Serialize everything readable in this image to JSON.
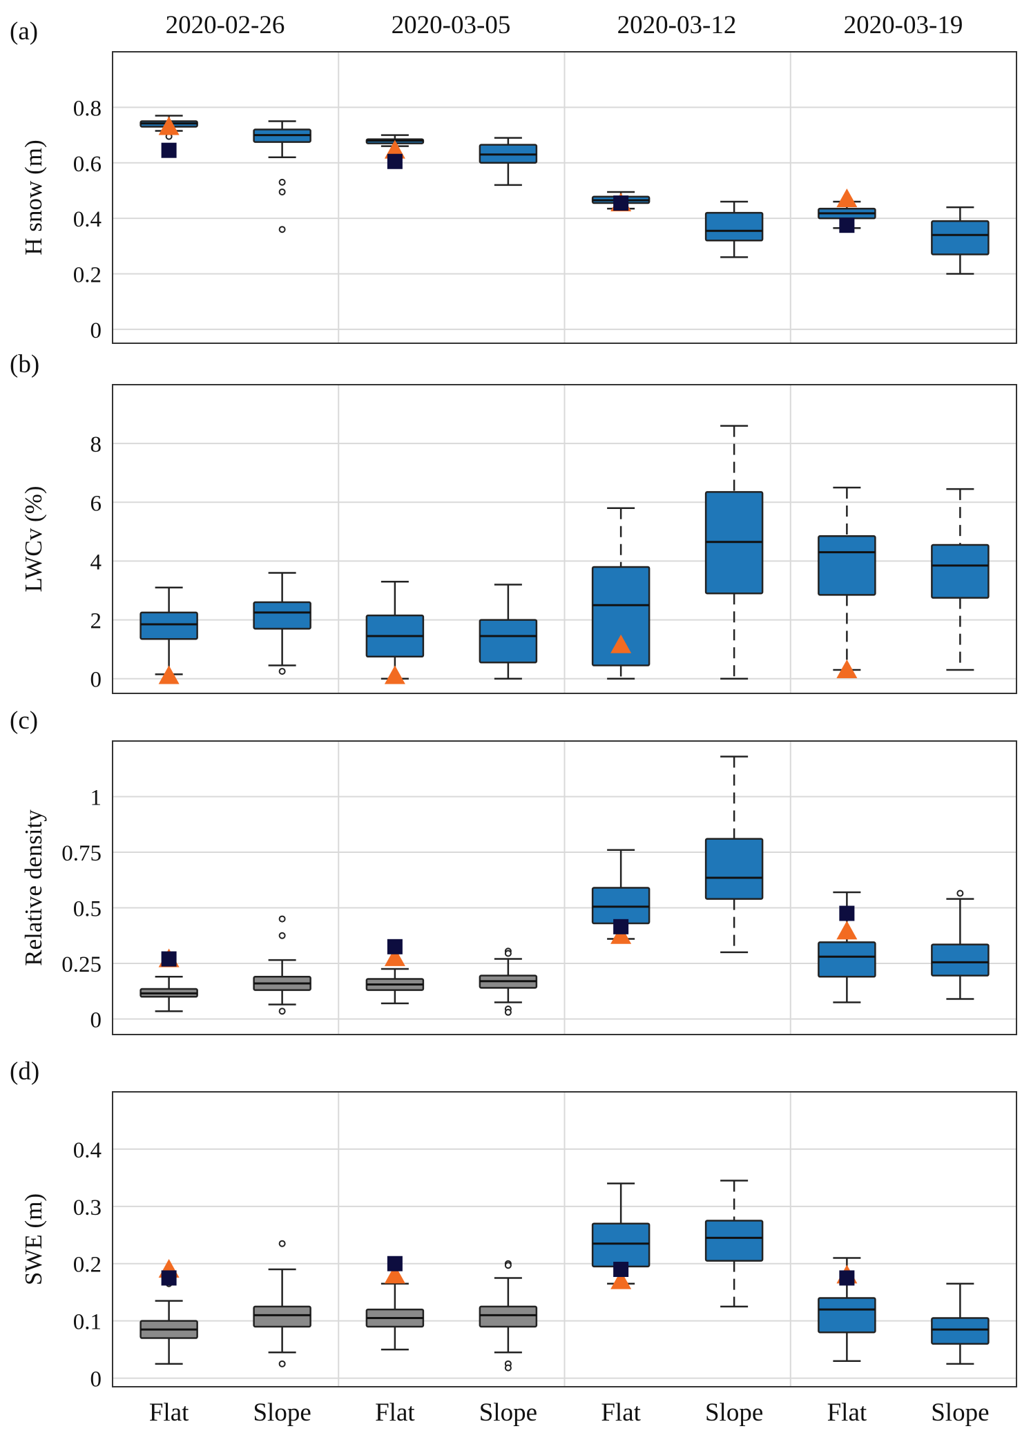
{
  "chart_data": {
    "type": "boxplot",
    "groups": [
      "2020-02-26",
      "2020-03-05",
      "2020-03-12",
      "2020-03-19"
    ],
    "categories": [
      "Flat",
      "Slope"
    ],
    "colors": {
      "box_blue": "#1f77b8",
      "box_gray": "#8a8a8a",
      "triangle": "#f26b21",
      "square": "#0d0d3f",
      "grid": "#d9d9d9"
    },
    "panels": [
      {
        "letter": "(a)",
        "ylabel": "H snow (m)",
        "ylim": [
          -0.05,
          1.0
        ],
        "yticks": [
          0,
          0.2,
          0.4,
          0.6,
          0.8
        ],
        "yticklabels": [
          "0",
          "0.2",
          "0.4",
          "0.6",
          "0.8"
        ],
        "boxes": [
          {
            "date": "2020-02-26",
            "cat": "Flat",
            "color": "blue",
            "min": 0.715,
            "q1": 0.73,
            "median": 0.742,
            "q3": 0.75,
            "max": 0.77,
            "outliers": [
              0.695
            ],
            "dashed": false
          },
          {
            "date": "2020-02-26",
            "cat": "Slope",
            "color": "blue",
            "min": 0.62,
            "q1": 0.675,
            "median": 0.7,
            "q3": 0.72,
            "max": 0.75,
            "outliers": [
              0.53,
              0.495,
              0.36
            ],
            "dashed": false
          },
          {
            "date": "2020-03-05",
            "cat": "Flat",
            "color": "blue",
            "min": 0.66,
            "q1": 0.67,
            "median": 0.68,
            "q3": 0.685,
            "max": 0.7,
            "outliers": [],
            "dashed": false
          },
          {
            "date": "2020-03-05",
            "cat": "Slope",
            "color": "blue",
            "min": 0.52,
            "q1": 0.6,
            "median": 0.63,
            "q3": 0.665,
            "max": 0.69,
            "outliers": [],
            "dashed": false
          },
          {
            "date": "2020-03-12",
            "cat": "Flat",
            "color": "blue",
            "min": 0.435,
            "q1": 0.455,
            "median": 0.465,
            "q3": 0.478,
            "max": 0.495,
            "outliers": [],
            "dashed": false
          },
          {
            "date": "2020-03-12",
            "cat": "Slope",
            "color": "blue",
            "min": 0.26,
            "q1": 0.32,
            "median": 0.355,
            "q3": 0.42,
            "max": 0.46,
            "outliers": [],
            "dashed": false
          },
          {
            "date": "2020-03-19",
            "cat": "Flat",
            "color": "blue",
            "min": 0.365,
            "q1": 0.4,
            "median": 0.418,
            "q3": 0.435,
            "max": 0.46,
            "outliers": [],
            "dashed": false
          },
          {
            "date": "2020-03-19",
            "cat": "Slope",
            "color": "blue",
            "min": 0.2,
            "q1": 0.27,
            "median": 0.34,
            "q3": 0.39,
            "max": 0.44,
            "outliers": [],
            "dashed": false
          }
        ],
        "triangles": [
          {
            "date": "2020-02-26",
            "value": 0.73
          },
          {
            "date": "2020-03-05",
            "value": 0.645
          },
          {
            "date": "2020-03-12",
            "value": 0.455
          },
          {
            "date": "2020-03-19",
            "value": 0.47
          }
        ],
        "squares": [
          {
            "date": "2020-02-26",
            "value": 0.645
          },
          {
            "date": "2020-03-05",
            "value": 0.605
          },
          {
            "date": "2020-03-12",
            "value": 0.455
          },
          {
            "date": "2020-03-19",
            "value": 0.375
          }
        ]
      },
      {
        "letter": "(b)",
        "ylabel": "LWCv (%)",
        "ylim": [
          -0.5,
          10.0
        ],
        "yticks": [
          0,
          2,
          4,
          6,
          8
        ],
        "yticklabels": [
          "0",
          "2",
          "4",
          "6",
          "8"
        ],
        "boxes": [
          {
            "date": "2020-02-26",
            "cat": "Flat",
            "color": "blue",
            "min": 0.15,
            "q1": 1.35,
            "median": 1.85,
            "q3": 2.25,
            "max": 3.1,
            "outliers": [],
            "dashed": false
          },
          {
            "date": "2020-02-26",
            "cat": "Slope",
            "color": "blue",
            "min": 0.45,
            "q1": 1.7,
            "median": 2.25,
            "q3": 2.6,
            "max": 3.6,
            "outliers": [
              0.25
            ],
            "dashed": false
          },
          {
            "date": "2020-03-05",
            "cat": "Flat",
            "color": "blue",
            "min": 0.0,
            "q1": 0.75,
            "median": 1.45,
            "q3": 2.15,
            "max": 3.3,
            "outliers": [],
            "dashed": false
          },
          {
            "date": "2020-03-05",
            "cat": "Slope",
            "color": "blue",
            "min": 0.0,
            "q1": 0.55,
            "median": 1.45,
            "q3": 2.0,
            "max": 3.2,
            "outliers": [],
            "dashed": false
          },
          {
            "date": "2020-03-12",
            "cat": "Flat",
            "color": "blue",
            "min": 0.0,
            "q1": 0.45,
            "median": 2.5,
            "q3": 3.8,
            "max": 5.8,
            "outliers": [],
            "dashed": true
          },
          {
            "date": "2020-03-12",
            "cat": "Slope",
            "color": "blue",
            "min": 0.0,
            "q1": 2.9,
            "median": 4.65,
            "q3": 6.35,
            "max": 8.6,
            "outliers": [],
            "dashed": true
          },
          {
            "date": "2020-03-19",
            "cat": "Flat",
            "color": "blue",
            "min": 0.3,
            "q1": 2.85,
            "median": 4.3,
            "q3": 4.85,
            "max": 6.5,
            "outliers": [],
            "dashed": true
          },
          {
            "date": "2020-03-19",
            "cat": "Slope",
            "color": "blue",
            "min": 0.3,
            "q1": 2.75,
            "median": 3.85,
            "q3": 4.55,
            "max": 6.45,
            "outliers": [],
            "dashed": true
          }
        ],
        "triangles": [
          {
            "date": "2020-02-26",
            "value": 0.1
          },
          {
            "date": "2020-03-05",
            "value": 0.1
          },
          {
            "date": "2020-03-12",
            "value": 1.15
          },
          {
            "date": "2020-03-19",
            "value": 0.3
          }
        ],
        "squares": []
      },
      {
        "letter": "(c)",
        "ylabel": "Relative density",
        "ylim": [
          -0.07,
          1.25
        ],
        "yticks": [
          0,
          0.25,
          0.5,
          0.75,
          1
        ],
        "yticklabels": [
          "0",
          "0.25",
          "0.5",
          "0.75",
          "1"
        ],
        "boxes": [
          {
            "date": "2020-02-26",
            "cat": "Flat",
            "color": "gray",
            "min": 0.035,
            "q1": 0.1,
            "median": 0.115,
            "q3": 0.135,
            "max": 0.19,
            "outliers": [],
            "dashed": false
          },
          {
            "date": "2020-02-26",
            "cat": "Slope",
            "color": "gray",
            "min": 0.065,
            "q1": 0.13,
            "median": 0.16,
            "q3": 0.19,
            "max": 0.265,
            "outliers": [
              0.45,
              0.375,
              0.035
            ],
            "dashed": false
          },
          {
            "date": "2020-03-05",
            "cat": "Flat",
            "color": "gray",
            "min": 0.07,
            "q1": 0.13,
            "median": 0.155,
            "q3": 0.18,
            "max": 0.225,
            "outliers": [],
            "dashed": false
          },
          {
            "date": "2020-03-05",
            "cat": "Slope",
            "color": "gray",
            "min": 0.075,
            "q1": 0.14,
            "median": 0.17,
            "q3": 0.195,
            "max": 0.27,
            "outliers": [
              0.305,
              0.295,
              0.045,
              0.03
            ],
            "dashed": false
          },
          {
            "date": "2020-03-12",
            "cat": "Flat",
            "color": "blue",
            "min": 0.36,
            "q1": 0.43,
            "median": 0.505,
            "q3": 0.59,
            "max": 0.76,
            "outliers": [],
            "dashed": false
          },
          {
            "date": "2020-03-12",
            "cat": "Slope",
            "color": "blue",
            "min": 0.3,
            "q1": 0.54,
            "median": 0.635,
            "q3": 0.81,
            "max": 1.18,
            "outliers": [],
            "dashed": true
          },
          {
            "date": "2020-03-19",
            "cat": "Flat",
            "color": "blue",
            "min": 0.075,
            "q1": 0.19,
            "median": 0.28,
            "q3": 0.345,
            "max": 0.57,
            "outliers": [],
            "dashed": false
          },
          {
            "date": "2020-03-19",
            "cat": "Slope",
            "color": "blue",
            "min": 0.09,
            "q1": 0.195,
            "median": 0.255,
            "q3": 0.335,
            "max": 0.54,
            "outliers": [
              0.565
            ],
            "dashed": false
          }
        ],
        "triangles": [
          {
            "date": "2020-02-26",
            "value": 0.27
          },
          {
            "date": "2020-03-05",
            "value": 0.275
          },
          {
            "date": "2020-03-12",
            "value": 0.375
          },
          {
            "date": "2020-03-19",
            "value": 0.395
          }
        ],
        "squares": [
          {
            "date": "2020-02-26",
            "value": 0.27
          },
          {
            "date": "2020-03-05",
            "value": 0.325
          },
          {
            "date": "2020-03-12",
            "value": 0.415
          },
          {
            "date": "2020-03-19",
            "value": 0.475
          }
        ]
      },
      {
        "letter": "(d)",
        "ylabel": "SWE (m)",
        "ylim": [
          -0.015,
          0.5
        ],
        "yticks": [
          0,
          0.1,
          0.2,
          0.3,
          0.4
        ],
        "yticklabels": [
          "0",
          "0.1",
          "0.2",
          "0.3",
          "0.4"
        ],
        "boxes": [
          {
            "date": "2020-02-26",
            "cat": "Flat",
            "color": "gray",
            "min": 0.025,
            "q1": 0.07,
            "median": 0.085,
            "q3": 0.1,
            "max": 0.135,
            "outliers": [
              0.165
            ],
            "dashed": false
          },
          {
            "date": "2020-02-26",
            "cat": "Slope",
            "color": "gray",
            "min": 0.045,
            "q1": 0.09,
            "median": 0.11,
            "q3": 0.125,
            "max": 0.19,
            "outliers": [
              0.235,
              0.025
            ],
            "dashed": false
          },
          {
            "date": "2020-03-05",
            "cat": "Flat",
            "color": "gray",
            "min": 0.05,
            "q1": 0.09,
            "median": 0.105,
            "q3": 0.12,
            "max": 0.165,
            "outliers": [],
            "dashed": false
          },
          {
            "date": "2020-03-05",
            "cat": "Slope",
            "color": "gray",
            "min": 0.045,
            "q1": 0.09,
            "median": 0.11,
            "q3": 0.125,
            "max": 0.175,
            "outliers": [
              0.2,
              0.197,
              0.025,
              0.018
            ],
            "dashed": false
          },
          {
            "date": "2020-03-12",
            "cat": "Flat",
            "color": "blue",
            "min": 0.165,
            "q1": 0.195,
            "median": 0.235,
            "q3": 0.27,
            "max": 0.34,
            "outliers": [],
            "dashed": false
          },
          {
            "date": "2020-03-12",
            "cat": "Slope",
            "color": "blue",
            "min": 0.125,
            "q1": 0.205,
            "median": 0.245,
            "q3": 0.275,
            "max": 0.345,
            "outliers": [],
            "dashed": true
          },
          {
            "date": "2020-03-19",
            "cat": "Flat",
            "color": "blue",
            "min": 0.03,
            "q1": 0.08,
            "median": 0.12,
            "q3": 0.14,
            "max": 0.21,
            "outliers": [],
            "dashed": false
          },
          {
            "date": "2020-03-19",
            "cat": "Slope",
            "color": "blue",
            "min": 0.025,
            "q1": 0.06,
            "median": 0.085,
            "q3": 0.105,
            "max": 0.165,
            "outliers": [],
            "dashed": false
          }
        ],
        "triangles": [
          {
            "date": "2020-02-26",
            "value": 0.19
          },
          {
            "date": "2020-03-05",
            "value": 0.18
          },
          {
            "date": "2020-03-12",
            "value": 0.17
          },
          {
            "date": "2020-03-19",
            "value": 0.18
          }
        ],
        "squares": [
          {
            "date": "2020-02-26",
            "value": 0.175
          },
          {
            "date": "2020-03-05",
            "value": 0.2
          },
          {
            "date": "2020-03-12",
            "value": 0.19
          },
          {
            "date": "2020-03-19",
            "value": 0.175
          }
        ]
      }
    ]
  }
}
